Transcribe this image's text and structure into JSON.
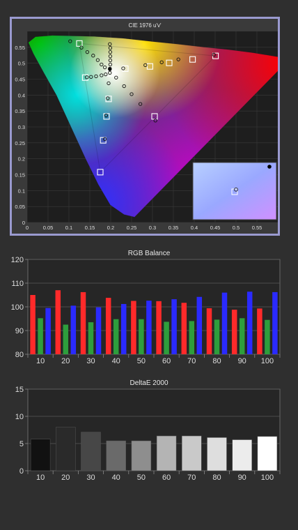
{
  "chart_data": [
    {
      "type": "scatter",
      "title": "CIE 1976 u'v'",
      "xlim": [
        0,
        0.6
      ],
      "ylim": [
        0,
        0.6
      ],
      "xticks": [
        0,
        0.05,
        0.1,
        0.15,
        0.2,
        0.25,
        0.3,
        0.35,
        0.4,
        0.45,
        0.5,
        0.55
      ],
      "yticks": [
        0,
        0.05,
        0.1,
        0.15,
        0.2,
        0.25,
        0.3,
        0.35,
        0.4,
        0.45,
        0.5,
        0.55
      ],
      "gamut": {
        "red": [
          0.451,
          0.523
        ],
        "green": [
          0.125,
          0.562
        ],
        "blue": [
          0.175,
          0.158
        ]
      },
      "white_point": [
        0.198,
        0.468
      ],
      "targets": [
        [
          0.125,
          0.562
        ],
        [
          0.451,
          0.523
        ],
        [
          0.175,
          0.158
        ],
        [
          0.198,
          0.468
        ],
        [
          0.396,
          0.512
        ],
        [
          0.34,
          0.501
        ],
        [
          0.294,
          0.49
        ],
        [
          0.235,
          0.483
        ],
        [
          0.139,
          0.455
        ],
        [
          0.195,
          0.388
        ],
        [
          0.19,
          0.333
        ],
        [
          0.182,
          0.258
        ],
        [
          0.305,
          0.333
        ]
      ],
      "measured": [
        [
          0.103,
          0.569
        ],
        [
          0.13,
          0.549
        ],
        [
          0.144,
          0.535
        ],
        [
          0.158,
          0.524
        ],
        [
          0.169,
          0.51
        ],
        [
          0.178,
          0.496
        ],
        [
          0.186,
          0.487
        ],
        [
          0.198,
          0.47
        ],
        [
          0.198,
          0.56
        ],
        [
          0.199,
          0.548
        ],
        [
          0.199,
          0.535
        ],
        [
          0.199,
          0.522
        ],
        [
          0.199,
          0.509
        ],
        [
          0.199,
          0.496
        ],
        [
          0.198,
          0.483
        ],
        [
          0.143,
          0.456
        ],
        [
          0.153,
          0.457
        ],
        [
          0.165,
          0.459
        ],
        [
          0.178,
          0.462
        ],
        [
          0.188,
          0.465
        ],
        [
          0.23,
          0.484
        ],
        [
          0.283,
          0.494
        ],
        [
          0.322,
          0.503
        ],
        [
          0.362,
          0.512
        ],
        [
          0.447,
          0.527
        ],
        [
          0.213,
          0.455
        ],
        [
          0.232,
          0.428
        ],
        [
          0.25,
          0.403
        ],
        [
          0.271,
          0.372
        ],
        [
          0.193,
          0.39
        ],
        [
          0.189,
          0.336
        ],
        [
          0.186,
          0.262
        ],
        [
          0.307,
          0.32
        ],
        [
          0.195,
          0.437
        ]
      ],
      "inset": {
        "target": [
          0,
          0
        ],
        "measured": [
          0.12,
          0.04
        ],
        "reference": [
          0.5,
          0.45
        ]
      }
    },
    {
      "type": "bar",
      "title": "RGB Balance",
      "categories": [
        "10",
        "20",
        "30",
        "40",
        "50",
        "60",
        "70",
        "80",
        "90",
        "100"
      ],
      "ylim": [
        80,
        120
      ],
      "yticks": [
        80,
        90,
        100,
        110,
        120
      ],
      "series": [
        {
          "color": "#ff2a2a",
          "values": [
            105.0,
            107.0,
            106.2,
            103.8,
            102.5,
            102.4,
            101.7,
            99.4,
            98.8,
            99.3
          ]
        },
        {
          "color": "#2e9e3c",
          "values": [
            95.2,
            92.5,
            93.5,
            94.8,
            94.8,
            93.7,
            94.0,
            94.6,
            95.2,
            94.5
          ]
        },
        {
          "color": "#2a2aff",
          "values": [
            99.5,
            100.5,
            99.8,
            101.2,
            102.6,
            103.2,
            104.2,
            106.0,
            106.4,
            106.2
          ]
        }
      ]
    },
    {
      "type": "bar",
      "title": "DeltaE 2000",
      "categories": [
        "10",
        "20",
        "30",
        "40",
        "50",
        "60",
        "70",
        "80",
        "90",
        "100"
      ],
      "ylim": [
        0,
        15
      ],
      "yticks": [
        0,
        5,
        10,
        15
      ],
      "values": [
        5.8,
        8.0,
        7.1,
        5.5,
        5.5,
        6.4,
        6.4,
        6.1,
        5.7,
        6.3
      ],
      "colors": [
        "#111111",
        "#2a2a2a",
        "#474747",
        "#6a6a6a",
        "#8e8e8e",
        "#b4b4b4",
        "#c9c9c9",
        "#dedede",
        "#ececec",
        "#ffffff"
      ]
    }
  ]
}
